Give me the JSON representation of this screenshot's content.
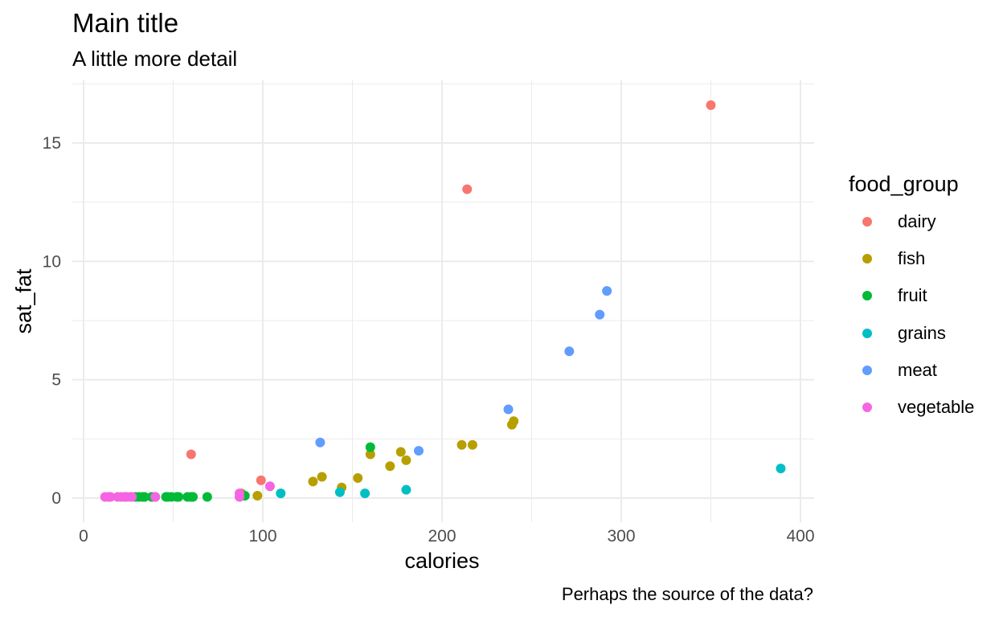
{
  "chart_data": {
    "type": "scatter",
    "title": "Main title",
    "subtitle": "A little more detail",
    "caption": "Perhaps the source of the data?",
    "xlabel": "calories",
    "ylabel": "sat_fat",
    "xlim": [
      0,
      400
    ],
    "ylim": [
      0,
      17
    ],
    "xticks": [
      0,
      100,
      200,
      300,
      400
    ],
    "yticks": [
      0,
      5,
      10,
      15
    ],
    "grid": true,
    "legend": {
      "title": "food_group",
      "placement": "right"
    },
    "series": [
      {
        "name": "dairy",
        "color": "#F8766D",
        "points": [
          [
            60,
            1.85
          ],
          [
            99,
            0.75
          ],
          [
            214,
            13.05
          ],
          [
            350,
            16.6
          ]
        ]
      },
      {
        "name": "fish",
        "color": "#B79F00",
        "points": [
          [
            88,
            0.2
          ],
          [
            97,
            0.1
          ],
          [
            128,
            0.7
          ],
          [
            133,
            0.9
          ],
          [
            144,
            0.45
          ],
          [
            153,
            0.85
          ],
          [
            160,
            1.85
          ],
          [
            171,
            1.35
          ],
          [
            177,
            1.95
          ],
          [
            180,
            1.6
          ],
          [
            211,
            2.25
          ],
          [
            217,
            2.25
          ],
          [
            239,
            3.1
          ],
          [
            240,
            3.25
          ]
        ]
      },
      {
        "name": "fruit",
        "color": "#00BA38",
        "points": [
          [
            29,
            0.05
          ],
          [
            31,
            0.05
          ],
          [
            33,
            0.05
          ],
          [
            34,
            0.05
          ],
          [
            38,
            0.05
          ],
          [
            40,
            0.05
          ],
          [
            46,
            0.05
          ],
          [
            47,
            0.05
          ],
          [
            49,
            0.05
          ],
          [
            52,
            0.05
          ],
          [
            53,
            0.05
          ],
          [
            58,
            0.05
          ],
          [
            60,
            0.05
          ],
          [
            61,
            0.05
          ],
          [
            69,
            0.05
          ],
          [
            89,
            0.1
          ],
          [
            90,
            0.1
          ],
          [
            160,
            2.15
          ]
        ]
      },
      {
        "name": "grains",
        "color": "#00BFC4",
        "points": [
          [
            110,
            0.2
          ],
          [
            143,
            0.25
          ],
          [
            157,
            0.2
          ],
          [
            180,
            0.35
          ],
          [
            389,
            1.25
          ]
        ]
      },
      {
        "name": "meat",
        "color": "#619CFF",
        "points": [
          [
            132,
            2.35
          ],
          [
            187,
            2.0
          ],
          [
            237,
            3.75
          ],
          [
            271,
            6.2
          ],
          [
            288,
            7.75
          ],
          [
            292,
            8.75
          ]
        ]
      },
      {
        "name": "vegetable",
        "color": "#F564E3",
        "points": [
          [
            12,
            0.05
          ],
          [
            14,
            0.05
          ],
          [
            15,
            0.05
          ],
          [
            19,
            0.05
          ],
          [
            21,
            0.05
          ],
          [
            23,
            0.05
          ],
          [
            24,
            0.05
          ],
          [
            26,
            0.05
          ],
          [
            27,
            0.05
          ],
          [
            40,
            0.05
          ],
          [
            87,
            0.05
          ],
          [
            87,
            0.2
          ],
          [
            104,
            0.5
          ]
        ]
      }
    ]
  }
}
